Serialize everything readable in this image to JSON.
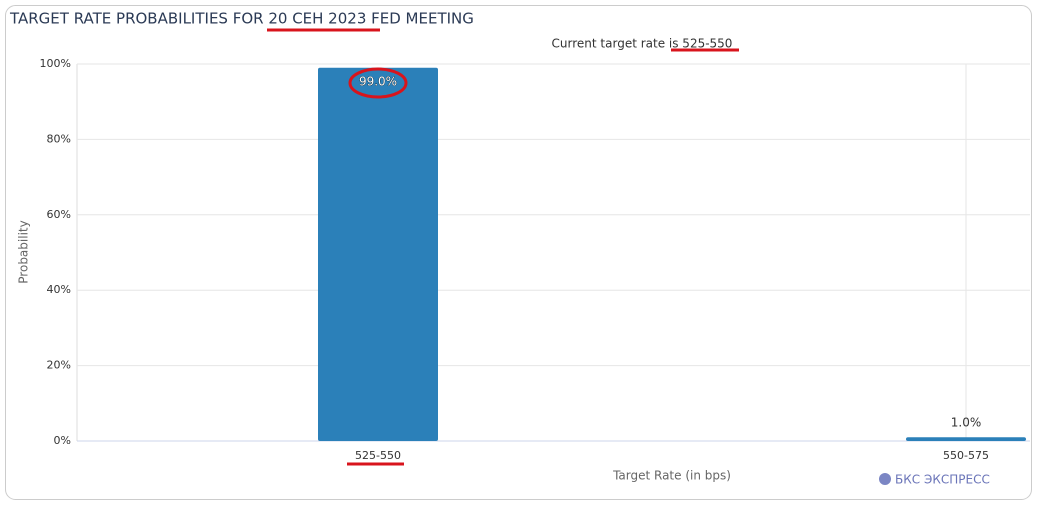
{
  "chart_data": {
    "type": "bar",
    "title": "TARGET RATE PROBABILITIES FOR 20 СЕН 2023 FED MEETING",
    "subtitle": "Current target rate is 525-550",
    "x_label": "Target Rate (in bps)",
    "y_label": "Probability",
    "categories": [
      "525-550",
      "550-575"
    ],
    "values": [
      99,
      1
    ],
    "value_labels": [
      "99.0%",
      "1.0%"
    ],
    "color": "#2b80b9",
    "ylim": [
      0,
      100
    ],
    "yticks": [
      {
        "value": 0,
        "label": "0%"
      },
      {
        "value": 20,
        "label": "20%"
      },
      {
        "value": 40,
        "label": "40%"
      },
      {
        "value": 60,
        "label": "60%"
      },
      {
        "value": 80,
        "label": "80%"
      },
      {
        "value": 100,
        "label": "100%"
      }
    ],
    "grid": true,
    "watermark": "БКС ЭКСПРЕСС"
  }
}
